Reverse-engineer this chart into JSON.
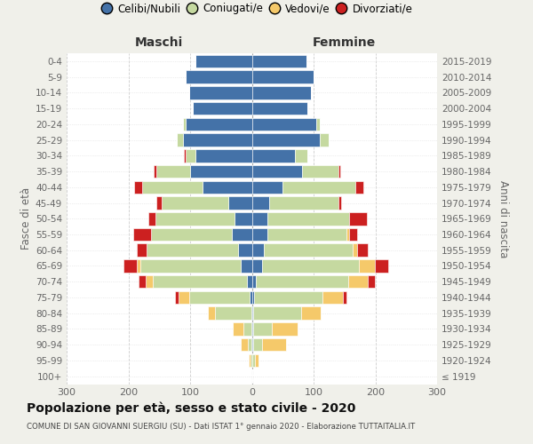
{
  "age_groups": [
    "100+",
    "95-99",
    "90-94",
    "85-89",
    "80-84",
    "75-79",
    "70-74",
    "65-69",
    "60-64",
    "55-59",
    "50-54",
    "45-49",
    "40-44",
    "35-39",
    "30-34",
    "25-29",
    "20-24",
    "15-19",
    "10-14",
    "5-9",
    "0-4"
  ],
  "birth_years": [
    "≤ 1919",
    "1920-1924",
    "1925-1929",
    "1930-1934",
    "1935-1939",
    "1940-1944",
    "1945-1949",
    "1950-1954",
    "1955-1959",
    "1960-1964",
    "1965-1969",
    "1970-1974",
    "1975-1979",
    "1980-1984",
    "1985-1989",
    "1990-1994",
    "1995-1999",
    "2000-2004",
    "2005-2009",
    "2010-2014",
    "2015-2019"
  ],
  "males": {
    "celibi": [
      0,
      0,
      1,
      1,
      1,
      3,
      8,
      18,
      22,
      32,
      28,
      38,
      80,
      100,
      92,
      112,
      107,
      96,
      102,
      107,
      92
    ],
    "coniugati": [
      0,
      2,
      5,
      12,
      58,
      98,
      152,
      162,
      148,
      132,
      128,
      108,
      98,
      54,
      15,
      10,
      5,
      0,
      0,
      0,
      0
    ],
    "vedovi": [
      0,
      3,
      12,
      18,
      12,
      18,
      12,
      6,
      0,
      0,
      0,
      0,
      0,
      0,
      0,
      0,
      0,
      0,
      0,
      0,
      0
    ],
    "divorziati": [
      0,
      0,
      0,
      0,
      0,
      6,
      12,
      22,
      17,
      28,
      12,
      8,
      12,
      5,
      3,
      0,
      0,
      0,
      0,
      0,
      0
    ]
  },
  "females": {
    "nubili": [
      0,
      0,
      2,
      2,
      2,
      3,
      6,
      16,
      20,
      25,
      25,
      28,
      50,
      82,
      70,
      110,
      105,
      90,
      95,
      100,
      88
    ],
    "coniugate": [
      0,
      5,
      15,
      30,
      78,
      112,
      150,
      158,
      143,
      128,
      133,
      112,
      118,
      58,
      20,
      15,
      5,
      0,
      0,
      0,
      0
    ],
    "vedove": [
      0,
      6,
      38,
      42,
      32,
      32,
      32,
      25,
      8,
      5,
      0,
      0,
      0,
      0,
      0,
      0,
      0,
      0,
      0,
      0,
      0
    ],
    "divorziate": [
      0,
      0,
      0,
      0,
      0,
      6,
      12,
      22,
      17,
      12,
      28,
      5,
      12,
      3,
      0,
      0,
      0,
      0,
      0,
      0,
      0
    ]
  },
  "colors": {
    "celibi": "#4472a8",
    "coniugati": "#c5d9a0",
    "vedovi": "#f5c96a",
    "divorziati": "#cc2020"
  },
  "legend_labels": [
    "Celibi/Nubili",
    "Coniugati/e",
    "Vedovi/e",
    "Divorziati/e"
  ],
  "title": "Popolazione per età, sesso e stato civile - 2020",
  "subtitle": "COMUNE DI SAN GIOVANNI SUERGIU (SU) - Dati ISTAT 1° gennaio 2020 - Elaborazione TUTTAITALIA.IT",
  "xlabel_left": "Maschi",
  "xlabel_right": "Femmine",
  "ylabel_left": "Fasce di età",
  "ylabel_right": "Anni di nascita",
  "xlim": 300,
  "background_color": "#f0f0ea",
  "plot_bg": "#ffffff"
}
